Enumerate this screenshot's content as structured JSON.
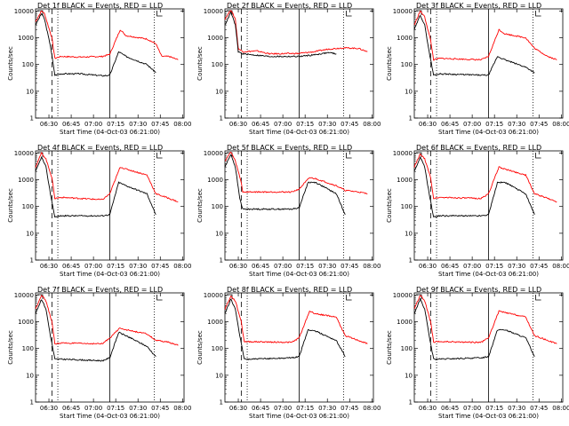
{
  "chart_data": {
    "type": "line",
    "common": {
      "xlabel": "Start Time (04-Oct-03 06:21:00)",
      "ylabel": "Counts/sec",
      "x_ticks": [
        "06:30",
        "06:45",
        "07:00",
        "07:15",
        "07:30",
        "07:45",
        "08:00"
      ],
      "y_ticks": [
        "1",
        "10",
        "100",
        "1000",
        "10000"
      ],
      "ylog": true,
      "ylim": [
        1,
        12000
      ],
      "xlim": [
        "06:21",
        "08:01"
      ],
      "colors": {
        "events": "#000000",
        "lld": "#ff0000"
      },
      "markers": {
        "dashed": "06:32",
        "dotted": "06:36",
        "solid": "07:11",
        "dotted2": "07:41"
      }
    },
    "panels": [
      {
        "title": "Det 1f BLACK = Events, RED = LLD",
        "events": [
          [
            0,
            3000
          ],
          [
            4,
            8000
          ],
          [
            6,
            5000
          ],
          [
            10,
            500
          ],
          [
            13,
            40
          ],
          [
            17,
            45
          ],
          [
            30,
            45
          ],
          [
            45,
            38
          ],
          [
            50,
            40
          ],
          [
            56,
            300
          ],
          [
            61,
            200
          ],
          [
            75,
            100
          ],
          [
            81,
            50
          ]
        ],
        "lld": [
          [
            0,
            4000
          ],
          [
            4,
            10000
          ],
          [
            6,
            8000
          ],
          [
            11,
            1000
          ],
          [
            13,
            170
          ],
          [
            17,
            200
          ],
          [
            30,
            190
          ],
          [
            45,
            200
          ],
          [
            50,
            240
          ],
          [
            57,
            2000
          ],
          [
            61,
            1200
          ],
          [
            75,
            900
          ],
          [
            81,
            600
          ],
          [
            85,
            200
          ],
          [
            90,
            200
          ],
          [
            96,
            150
          ]
        ]
      },
      {
        "title": "Det 2f BLACK = Events, RED = LLD",
        "events": [
          [
            0,
            3000
          ],
          [
            4,
            9000
          ],
          [
            7,
            3000
          ],
          [
            9,
            300
          ],
          [
            12,
            250
          ],
          [
            30,
            200
          ],
          [
            50,
            200
          ],
          [
            60,
            230
          ],
          [
            70,
            280
          ],
          [
            75,
            250
          ]
        ],
        "lld": [
          [
            0,
            5000
          ],
          [
            4,
            11000
          ],
          [
            7,
            5000
          ],
          [
            9,
            400
          ],
          [
            12,
            300
          ],
          [
            22,
            320
          ],
          [
            30,
            250
          ],
          [
            50,
            260
          ],
          [
            60,
            300
          ],
          [
            70,
            380
          ],
          [
            80,
            420
          ],
          [
            90,
            400
          ],
          [
            96,
            300
          ]
        ]
      },
      {
        "title": "Det 3f BLACK = Events, RED = LLD",
        "events": [
          [
            0,
            2000
          ],
          [
            4,
            7000
          ],
          [
            7,
            3000
          ],
          [
            10,
            300
          ],
          [
            13,
            40
          ],
          [
            17,
            45
          ],
          [
            45,
            40
          ],
          [
            50,
            40
          ],
          [
            56,
            200
          ],
          [
            61,
            150
          ],
          [
            75,
            80
          ],
          [
            81,
            50
          ]
        ],
        "lld": [
          [
            0,
            3000
          ],
          [
            4,
            10000
          ],
          [
            7,
            6000
          ],
          [
            11,
            800
          ],
          [
            13,
            150
          ],
          [
            17,
            170
          ],
          [
            45,
            150
          ],
          [
            50,
            200
          ],
          [
            57,
            2000
          ],
          [
            61,
            1400
          ],
          [
            75,
            1000
          ],
          [
            81,
            400
          ],
          [
            90,
            200
          ],
          [
            96,
            150
          ]
        ]
      },
      {
        "title": "Det 4f BLACK = Events, RED = LLD",
        "events": [
          [
            0,
            2000
          ],
          [
            4,
            7000
          ],
          [
            7,
            3000
          ],
          [
            10,
            300
          ],
          [
            13,
            40
          ],
          [
            17,
            45
          ],
          [
            45,
            45
          ],
          [
            50,
            50
          ],
          [
            56,
            800
          ],
          [
            61,
            600
          ],
          [
            75,
            300
          ],
          [
            81,
            50
          ]
        ],
        "lld": [
          [
            0,
            3000
          ],
          [
            4,
            10000
          ],
          [
            7,
            6000
          ],
          [
            11,
            1200
          ],
          [
            13,
            200
          ],
          [
            17,
            220
          ],
          [
            45,
            180
          ],
          [
            50,
            300
          ],
          [
            57,
            3000
          ],
          [
            61,
            2500
          ],
          [
            75,
            1500
          ],
          [
            81,
            300
          ],
          [
            90,
            200
          ],
          [
            96,
            150
          ]
        ]
      },
      {
        "title": "Det 5f BLACK = Events, RED = LLD",
        "events": [
          [
            0,
            3000
          ],
          [
            4,
            9000
          ],
          [
            7,
            3000
          ],
          [
            10,
            200
          ],
          [
            12,
            80
          ],
          [
            30,
            80
          ],
          [
            45,
            80
          ],
          [
            50,
            90
          ],
          [
            56,
            800
          ],
          [
            61,
            800
          ],
          [
            75,
            300
          ],
          [
            81,
            50
          ]
        ],
        "lld": [
          [
            0,
            5000
          ],
          [
            4,
            11000
          ],
          [
            7,
            5000
          ],
          [
            11,
            800
          ],
          [
            12,
            350
          ],
          [
            30,
            350
          ],
          [
            45,
            350
          ],
          [
            50,
            450
          ],
          [
            57,
            1200
          ],
          [
            61,
            1100
          ],
          [
            75,
            600
          ],
          [
            81,
            400
          ],
          [
            90,
            350
          ],
          [
            96,
            300
          ]
        ]
      },
      {
        "title": "Det 6f BLACK = Events, RED = LLD",
        "events": [
          [
            0,
            2000
          ],
          [
            4,
            7000
          ],
          [
            7,
            3000
          ],
          [
            10,
            300
          ],
          [
            13,
            40
          ],
          [
            17,
            45
          ],
          [
            45,
            45
          ],
          [
            50,
            50
          ],
          [
            56,
            800
          ],
          [
            61,
            800
          ],
          [
            75,
            300
          ],
          [
            81,
            50
          ]
        ],
        "lld": [
          [
            0,
            3000
          ],
          [
            4,
            9000
          ],
          [
            7,
            6000
          ],
          [
            11,
            1200
          ],
          [
            13,
            200
          ],
          [
            17,
            220
          ],
          [
            45,
            200
          ],
          [
            50,
            300
          ],
          [
            57,
            3000
          ],
          [
            61,
            2500
          ],
          [
            75,
            1500
          ],
          [
            81,
            300
          ],
          [
            90,
            200
          ],
          [
            96,
            150
          ]
        ]
      },
      {
        "title": "Det 7f BLACK = Events, RED = LLD",
        "events": [
          [
            0,
            2000
          ],
          [
            4,
            7000
          ],
          [
            7,
            3000
          ],
          [
            10,
            300
          ],
          [
            13,
            40
          ],
          [
            17,
            40
          ],
          [
            45,
            35
          ],
          [
            50,
            45
          ],
          [
            56,
            400
          ],
          [
            61,
            300
          ],
          [
            75,
            120
          ],
          [
            81,
            50
          ]
        ],
        "lld": [
          [
            0,
            3000
          ],
          [
            4,
            10000
          ],
          [
            7,
            6000
          ],
          [
            11,
            1000
          ],
          [
            13,
            150
          ],
          [
            17,
            160
          ],
          [
            45,
            150
          ],
          [
            50,
            250
          ],
          [
            57,
            600
          ],
          [
            61,
            500
          ],
          [
            75,
            350
          ],
          [
            81,
            200
          ],
          [
            90,
            170
          ],
          [
            96,
            130
          ]
        ]
      },
      {
        "title": "Det 8f BLACK = Events, RED = LLD",
        "events": [
          [
            0,
            2000
          ],
          [
            4,
            7000
          ],
          [
            7,
            3000
          ],
          [
            10,
            300
          ],
          [
            13,
            40
          ],
          [
            17,
            40
          ],
          [
            45,
            45
          ],
          [
            50,
            50
          ],
          [
            56,
            500
          ],
          [
            61,
            450
          ],
          [
            75,
            200
          ],
          [
            81,
            50
          ]
        ],
        "lld": [
          [
            0,
            3000
          ],
          [
            4,
            9000
          ],
          [
            7,
            6000
          ],
          [
            11,
            1000
          ],
          [
            13,
            180
          ],
          [
            17,
            180
          ],
          [
            45,
            170
          ],
          [
            50,
            250
          ],
          [
            57,
            2500
          ],
          [
            61,
            2000
          ],
          [
            75,
            1500
          ],
          [
            81,
            300
          ],
          [
            90,
            200
          ],
          [
            96,
            150
          ]
        ]
      },
      {
        "title": "Det 9f BLACK = Events, RED = LLD",
        "events": [
          [
            0,
            2000
          ],
          [
            4,
            7000
          ],
          [
            7,
            3000
          ],
          [
            10,
            300
          ],
          [
            13,
            40
          ],
          [
            17,
            40
          ],
          [
            45,
            45
          ],
          [
            50,
            50
          ],
          [
            56,
            500
          ],
          [
            61,
            500
          ],
          [
            75,
            250
          ],
          [
            81,
            50
          ]
        ],
        "lld": [
          [
            0,
            3000
          ],
          [
            4,
            10000
          ],
          [
            7,
            6000
          ],
          [
            11,
            1000
          ],
          [
            13,
            170
          ],
          [
            17,
            180
          ],
          [
            45,
            170
          ],
          [
            50,
            250
          ],
          [
            57,
            2500
          ],
          [
            61,
            2200
          ],
          [
            75,
            1500
          ],
          [
            81,
            300
          ],
          [
            90,
            200
          ],
          [
            96,
            150
          ]
        ]
      }
    ]
  }
}
